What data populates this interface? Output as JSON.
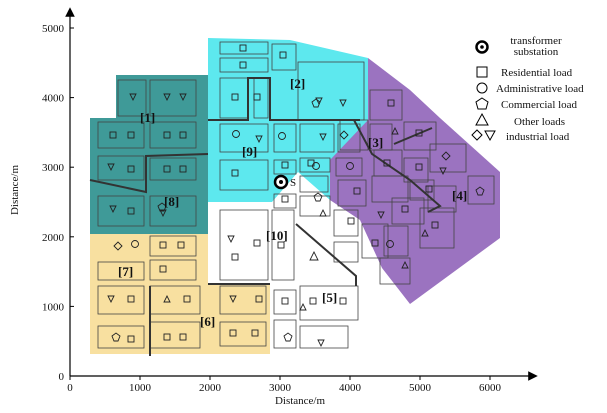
{
  "axes": {
    "xlabel": "Distance/m",
    "ylabel": "Distance/m",
    "xlim": [
      0,
      6500
    ],
    "ylim": [
      0,
      5000
    ],
    "xticks": [
      0,
      1000,
      2000,
      3000,
      4000,
      5000,
      6000
    ],
    "yticks": [
      0,
      1000,
      2000,
      3000,
      4000,
      5000
    ]
  },
  "zones": [
    {
      "label": "[1]",
      "color": "#3f9a98"
    },
    {
      "label": "[2]",
      "color": "#5de8ee"
    },
    {
      "label": "[3]",
      "color": "#9b73c0"
    },
    {
      "label": "[4]",
      "color": "#9b73c0"
    },
    {
      "label": "[5]",
      "color": "#ffffff"
    },
    {
      "label": "[6]",
      "color": "#f8e0a0"
    },
    {
      "label": "[7]",
      "color": "#f8e0a0"
    },
    {
      "label": "[8]",
      "color": "#3f9a98"
    },
    {
      "label": "[9]",
      "color": "#5de8ee"
    },
    {
      "label": "[10]",
      "color": "#ffffff"
    }
  ],
  "substation": {
    "label": "S"
  },
  "legend": [
    {
      "icon": "transformer-substation-icon",
      "text": "transformer substation"
    },
    {
      "icon": "square-icon",
      "text": "Residential load"
    },
    {
      "icon": "circle-icon",
      "text": "Administrative load"
    },
    {
      "icon": "pentagon-icon",
      "text": "Commercial load"
    },
    {
      "icon": "triangle-icon",
      "text": "Other loads"
    },
    {
      "icon": "diamond-triangle-icon",
      "text": "industrial load"
    }
  ]
}
